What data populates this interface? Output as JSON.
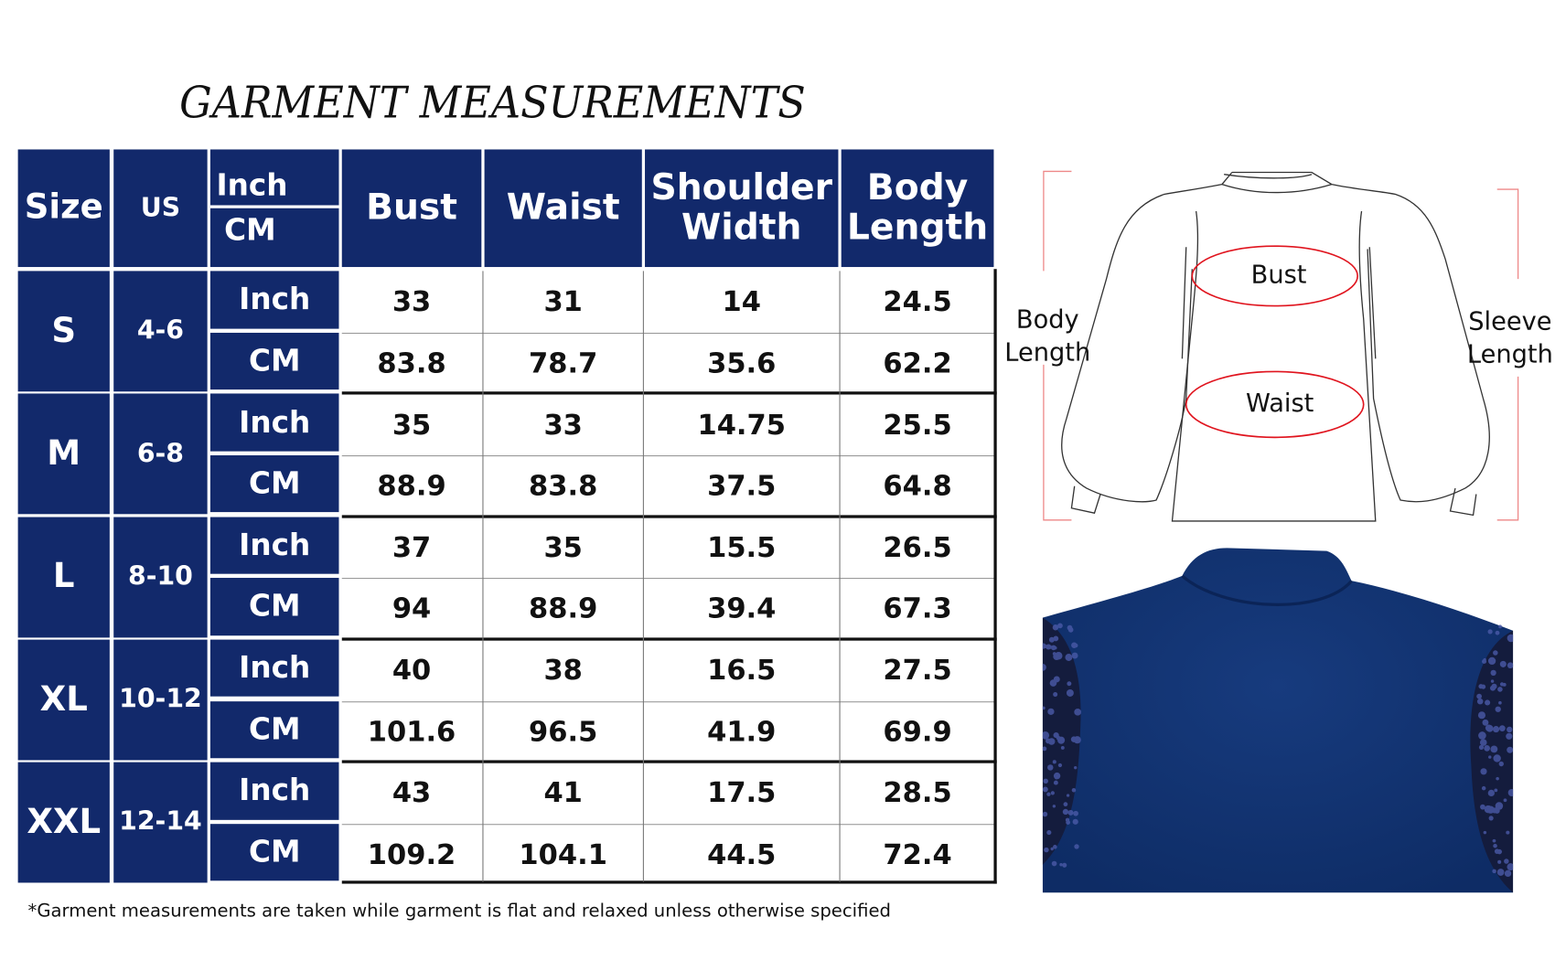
{
  "title": "GARMENT MEASUREMENTS",
  "colors": {
    "header_bg": "#12296b",
    "highlight": "#e0141e",
    "garment": "#13306e"
  },
  "table": {
    "headers": {
      "size": "Size",
      "us": "US",
      "unit_top": "Inch",
      "unit_bottom": "CM",
      "columns": [
        "Bust",
        "Waist",
        "Shoulder Width",
        "Body Length"
      ]
    },
    "rows": [
      {
        "size": "S",
        "us": "4-6",
        "inch": [
          "33",
          "31",
          "14",
          "24.5"
        ],
        "cm": [
          "83.8",
          "78.7",
          "35.6",
          "62.2"
        ]
      },
      {
        "size": "M",
        "us": "6-8",
        "inch": [
          "35",
          "33",
          "14.75",
          "25.5"
        ],
        "cm": [
          "88.9",
          "83.8",
          "37.5",
          "64.8"
        ]
      },
      {
        "size": "L",
        "us": "8-10",
        "inch": [
          "37",
          "35",
          "15.5",
          "26.5"
        ],
        "cm": [
          "94",
          "88.9",
          "39.4",
          "67.3"
        ]
      },
      {
        "size": "XL",
        "us": "10-12",
        "inch": [
          "40",
          "38",
          "16.5",
          "27.5"
        ],
        "cm": [
          "101.6",
          "96.5",
          "41.9",
          "69.9"
        ]
      },
      {
        "size": "XXL",
        "us": "12-14",
        "inch": [
          "43",
          "41",
          "17.5",
          "28.5"
        ],
        "cm": [
          "109.2",
          "104.1",
          "44.5",
          "72.4"
        ]
      }
    ],
    "unit_inch": "Inch",
    "unit_cm": "CM"
  },
  "footnote": "*Garment measurements are taken while garment is flat and relaxed unless otherwise specified",
  "diagram": {
    "bust": "Bust",
    "waist": "Waist",
    "body_length": "Body Length",
    "sleeve_length": "Sleeve Length"
  }
}
